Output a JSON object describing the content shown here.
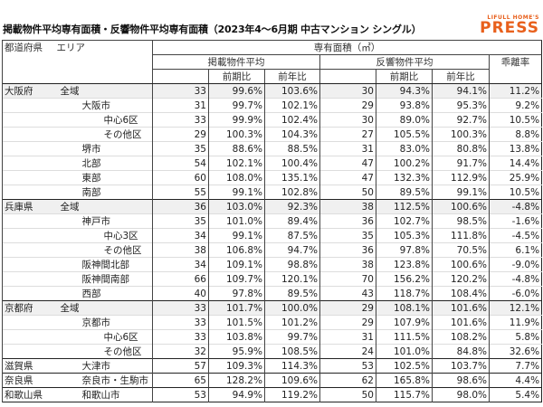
{
  "title": "掲載物件平均専有面積・反響物件平均専有面積（2023年4～6月期 中古マンション シングル）",
  "logo": {
    "small": "LIFULL HOME'S",
    "big": "PRESS",
    "color": "#e8601c"
  },
  "header": {
    "prefecture": "都道府県",
    "area": "エリア",
    "group": "専有面積（㎡）",
    "listing_avg": "掲載物件平均",
    "response_avg": "反響物件平均",
    "divergence": "乖離率",
    "qoq": "前期比",
    "yoy": "前年比"
  },
  "rows": [
    {
      "pref": "大阪府",
      "area": "全域",
      "level": 0,
      "group": true,
      "shade": true,
      "l": "33",
      "lq": "99.6%",
      "ly": "103.6%",
      "r": "30",
      "rq": "94.3%",
      "ry": "94.1%",
      "d": "11.2%"
    },
    {
      "pref": "",
      "area": "大阪市",
      "level": 1,
      "l": "31",
      "lq": "99.7%",
      "ly": "102.1%",
      "r": "29",
      "rq": "93.8%",
      "ry": "95.3%",
      "d": "9.2%"
    },
    {
      "pref": "",
      "area": "中心6区",
      "level": 2,
      "l": "33",
      "lq": "99.9%",
      "ly": "102.4%",
      "r": "30",
      "rq": "89.0%",
      "ry": "92.7%",
      "d": "10.5%"
    },
    {
      "pref": "",
      "area": "その他区",
      "level": 2,
      "l": "29",
      "lq": "100.3%",
      "ly": "104.3%",
      "r": "27",
      "rq": "105.5%",
      "ry": "100.3%",
      "d": "8.8%"
    },
    {
      "pref": "",
      "area": "堺市",
      "level": 1,
      "l": "35",
      "lq": "88.6%",
      "ly": "88.5%",
      "r": "31",
      "rq": "83.0%",
      "ry": "80.8%",
      "d": "13.8%"
    },
    {
      "pref": "",
      "area": "北部",
      "level": 1,
      "l": "54",
      "lq": "102.1%",
      "ly": "100.4%",
      "r": "47",
      "rq": "100.2%",
      "ry": "91.7%",
      "d": "14.4%"
    },
    {
      "pref": "",
      "area": "東部",
      "level": 1,
      "l": "60",
      "lq": "108.0%",
      "ly": "135.1%",
      "r": "47",
      "rq": "132.3%",
      "ry": "112.9%",
      "d": "25.9%"
    },
    {
      "pref": "",
      "area": "南部",
      "level": 1,
      "l": "55",
      "lq": "99.1%",
      "ly": "102.8%",
      "r": "50",
      "rq": "89.5%",
      "ry": "99.1%",
      "d": "10.5%"
    },
    {
      "pref": "兵庫県",
      "area": "全域",
      "level": 0,
      "group": true,
      "shade": true,
      "l": "36",
      "lq": "103.0%",
      "ly": "92.3%",
      "r": "38",
      "rq": "112.5%",
      "ry": "100.6%",
      "d": "-4.8%"
    },
    {
      "pref": "",
      "area": "神戸市",
      "level": 1,
      "l": "35",
      "lq": "101.0%",
      "ly": "89.4%",
      "r": "36",
      "rq": "102.7%",
      "ry": "98.5%",
      "d": "-1.6%"
    },
    {
      "pref": "",
      "area": "中心3区",
      "level": 2,
      "l": "34",
      "lq": "99.1%",
      "ly": "87.5%",
      "r": "35",
      "rq": "105.3%",
      "ry": "111.8%",
      "d": "-4.5%"
    },
    {
      "pref": "",
      "area": "その他区",
      "level": 2,
      "l": "38",
      "lq": "106.8%",
      "ly": "94.7%",
      "r": "36",
      "rq": "97.8%",
      "ry": "70.5%",
      "d": "6.1%"
    },
    {
      "pref": "",
      "area": "阪神間北部",
      "level": 1,
      "l": "34",
      "lq": "109.1%",
      "ly": "98.8%",
      "r": "38",
      "rq": "123.8%",
      "ry": "100.6%",
      "d": "-9.0%"
    },
    {
      "pref": "",
      "area": "阪神間南部",
      "level": 1,
      "l": "66",
      "lq": "109.7%",
      "ly": "120.1%",
      "r": "70",
      "rq": "156.2%",
      "ry": "120.2%",
      "d": "-4.8%"
    },
    {
      "pref": "",
      "area": "西部",
      "level": 1,
      "l": "40",
      "lq": "97.8%",
      "ly": "89.5%",
      "r": "43",
      "rq": "118.7%",
      "ry": "108.4%",
      "d": "-6.0%"
    },
    {
      "pref": "京都府",
      "area": "全域",
      "level": 0,
      "group": true,
      "shade": true,
      "l": "33",
      "lq": "101.7%",
      "ly": "100.0%",
      "r": "29",
      "rq": "108.1%",
      "ry": "101.6%",
      "d": "12.1%"
    },
    {
      "pref": "",
      "area": "京都市",
      "level": 1,
      "l": "33",
      "lq": "101.5%",
      "ly": "101.2%",
      "r": "29",
      "rq": "107.9%",
      "ry": "101.6%",
      "d": "11.9%"
    },
    {
      "pref": "",
      "area": "中心6区",
      "level": 2,
      "l": "33",
      "lq": "103.8%",
      "ly": "99.7%",
      "r": "31",
      "rq": "111.5%",
      "ry": "108.2%",
      "d": "5.8%"
    },
    {
      "pref": "",
      "area": "その他区",
      "level": 2,
      "l": "32",
      "lq": "95.9%",
      "ly": "108.5%",
      "r": "24",
      "rq": "101.0%",
      "ry": "84.8%",
      "d": "32.6%"
    },
    {
      "pref": "滋賀県",
      "area": "大津市",
      "level": 1,
      "group": true,
      "l": "57",
      "lq": "109.3%",
      "ly": "114.3%",
      "r": "53",
      "rq": "102.5%",
      "ry": "103.7%",
      "d": "7.7%"
    },
    {
      "pref": "奈良県",
      "area": "奈良市・生駒市",
      "level": 1,
      "group": true,
      "l": "65",
      "lq": "128.2%",
      "ly": "109.6%",
      "r": "62",
      "rq": "165.8%",
      "ry": "98.6%",
      "d": "4.4%"
    },
    {
      "pref": "和歌山県",
      "area": "和歌山市",
      "level": 1,
      "group": true,
      "l": "53",
      "lq": "94.9%",
      "ly": "119.2%",
      "r": "50",
      "rq": "115.7%",
      "ry": "98.0%",
      "d": "5.4%"
    }
  ]
}
